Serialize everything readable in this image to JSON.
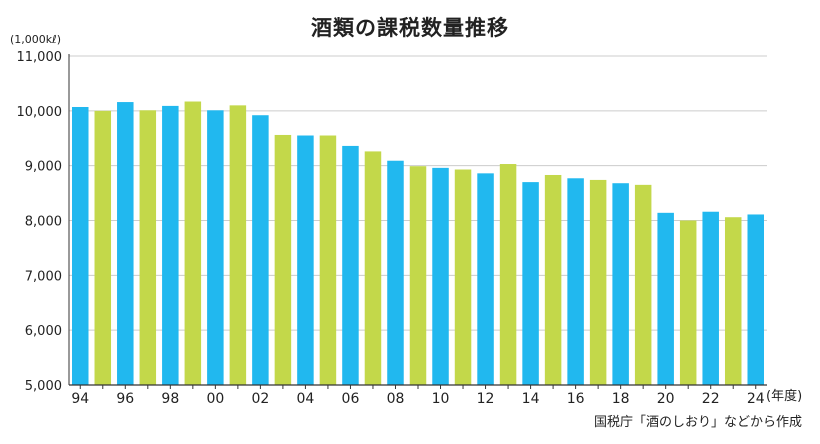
{
  "chart_data": {
    "type": "bar",
    "title": "酒類の課税数量推移",
    "unit_label": "(1,000kℓ)",
    "x_unit_label": "(年度)",
    "source": "国税庁「酒のしおり」などから作成",
    "categories": [
      "94",
      "95",
      "96",
      "97",
      "98",
      "99",
      "00",
      "01",
      "02",
      "03",
      "04",
      "05",
      "06",
      "07",
      "08",
      "09",
      "10",
      "11",
      "12",
      "13",
      "14",
      "15",
      "16",
      "17",
      "18",
      "19",
      "20",
      "21",
      "22",
      "23",
      "24"
    ],
    "x_tick_labels": [
      "94",
      "96",
      "98",
      "00",
      "02",
      "04",
      "06",
      "08",
      "10",
      "12",
      "14",
      "16",
      "18",
      "20",
      "22",
      "24"
    ],
    "values": [
      10070,
      10000,
      10160,
      10010,
      10090,
      10170,
      10010,
      10100,
      9920,
      9560,
      9550,
      9550,
      9360,
      9260,
      9090,
      8990,
      8960,
      8930,
      8860,
      9030,
      8700,
      8830,
      8770,
      8740,
      8680,
      8650,
      8140,
      8000,
      8160,
      8060,
      8110
    ],
    "ylim": [
      5000,
      11000
    ],
    "y_ticks": [
      5000,
      6000,
      7000,
      8000,
      9000,
      10000,
      11000
    ],
    "y_tick_labels": [
      "5,000",
      "6,000",
      "7,000",
      "8,000",
      "9,000",
      "10,000",
      "11,000"
    ],
    "grid": true,
    "colors": {
      "blue": "#21b8ef",
      "green": "#c3d84a",
      "grid": "#cccccc",
      "axis": "#333333"
    }
  }
}
